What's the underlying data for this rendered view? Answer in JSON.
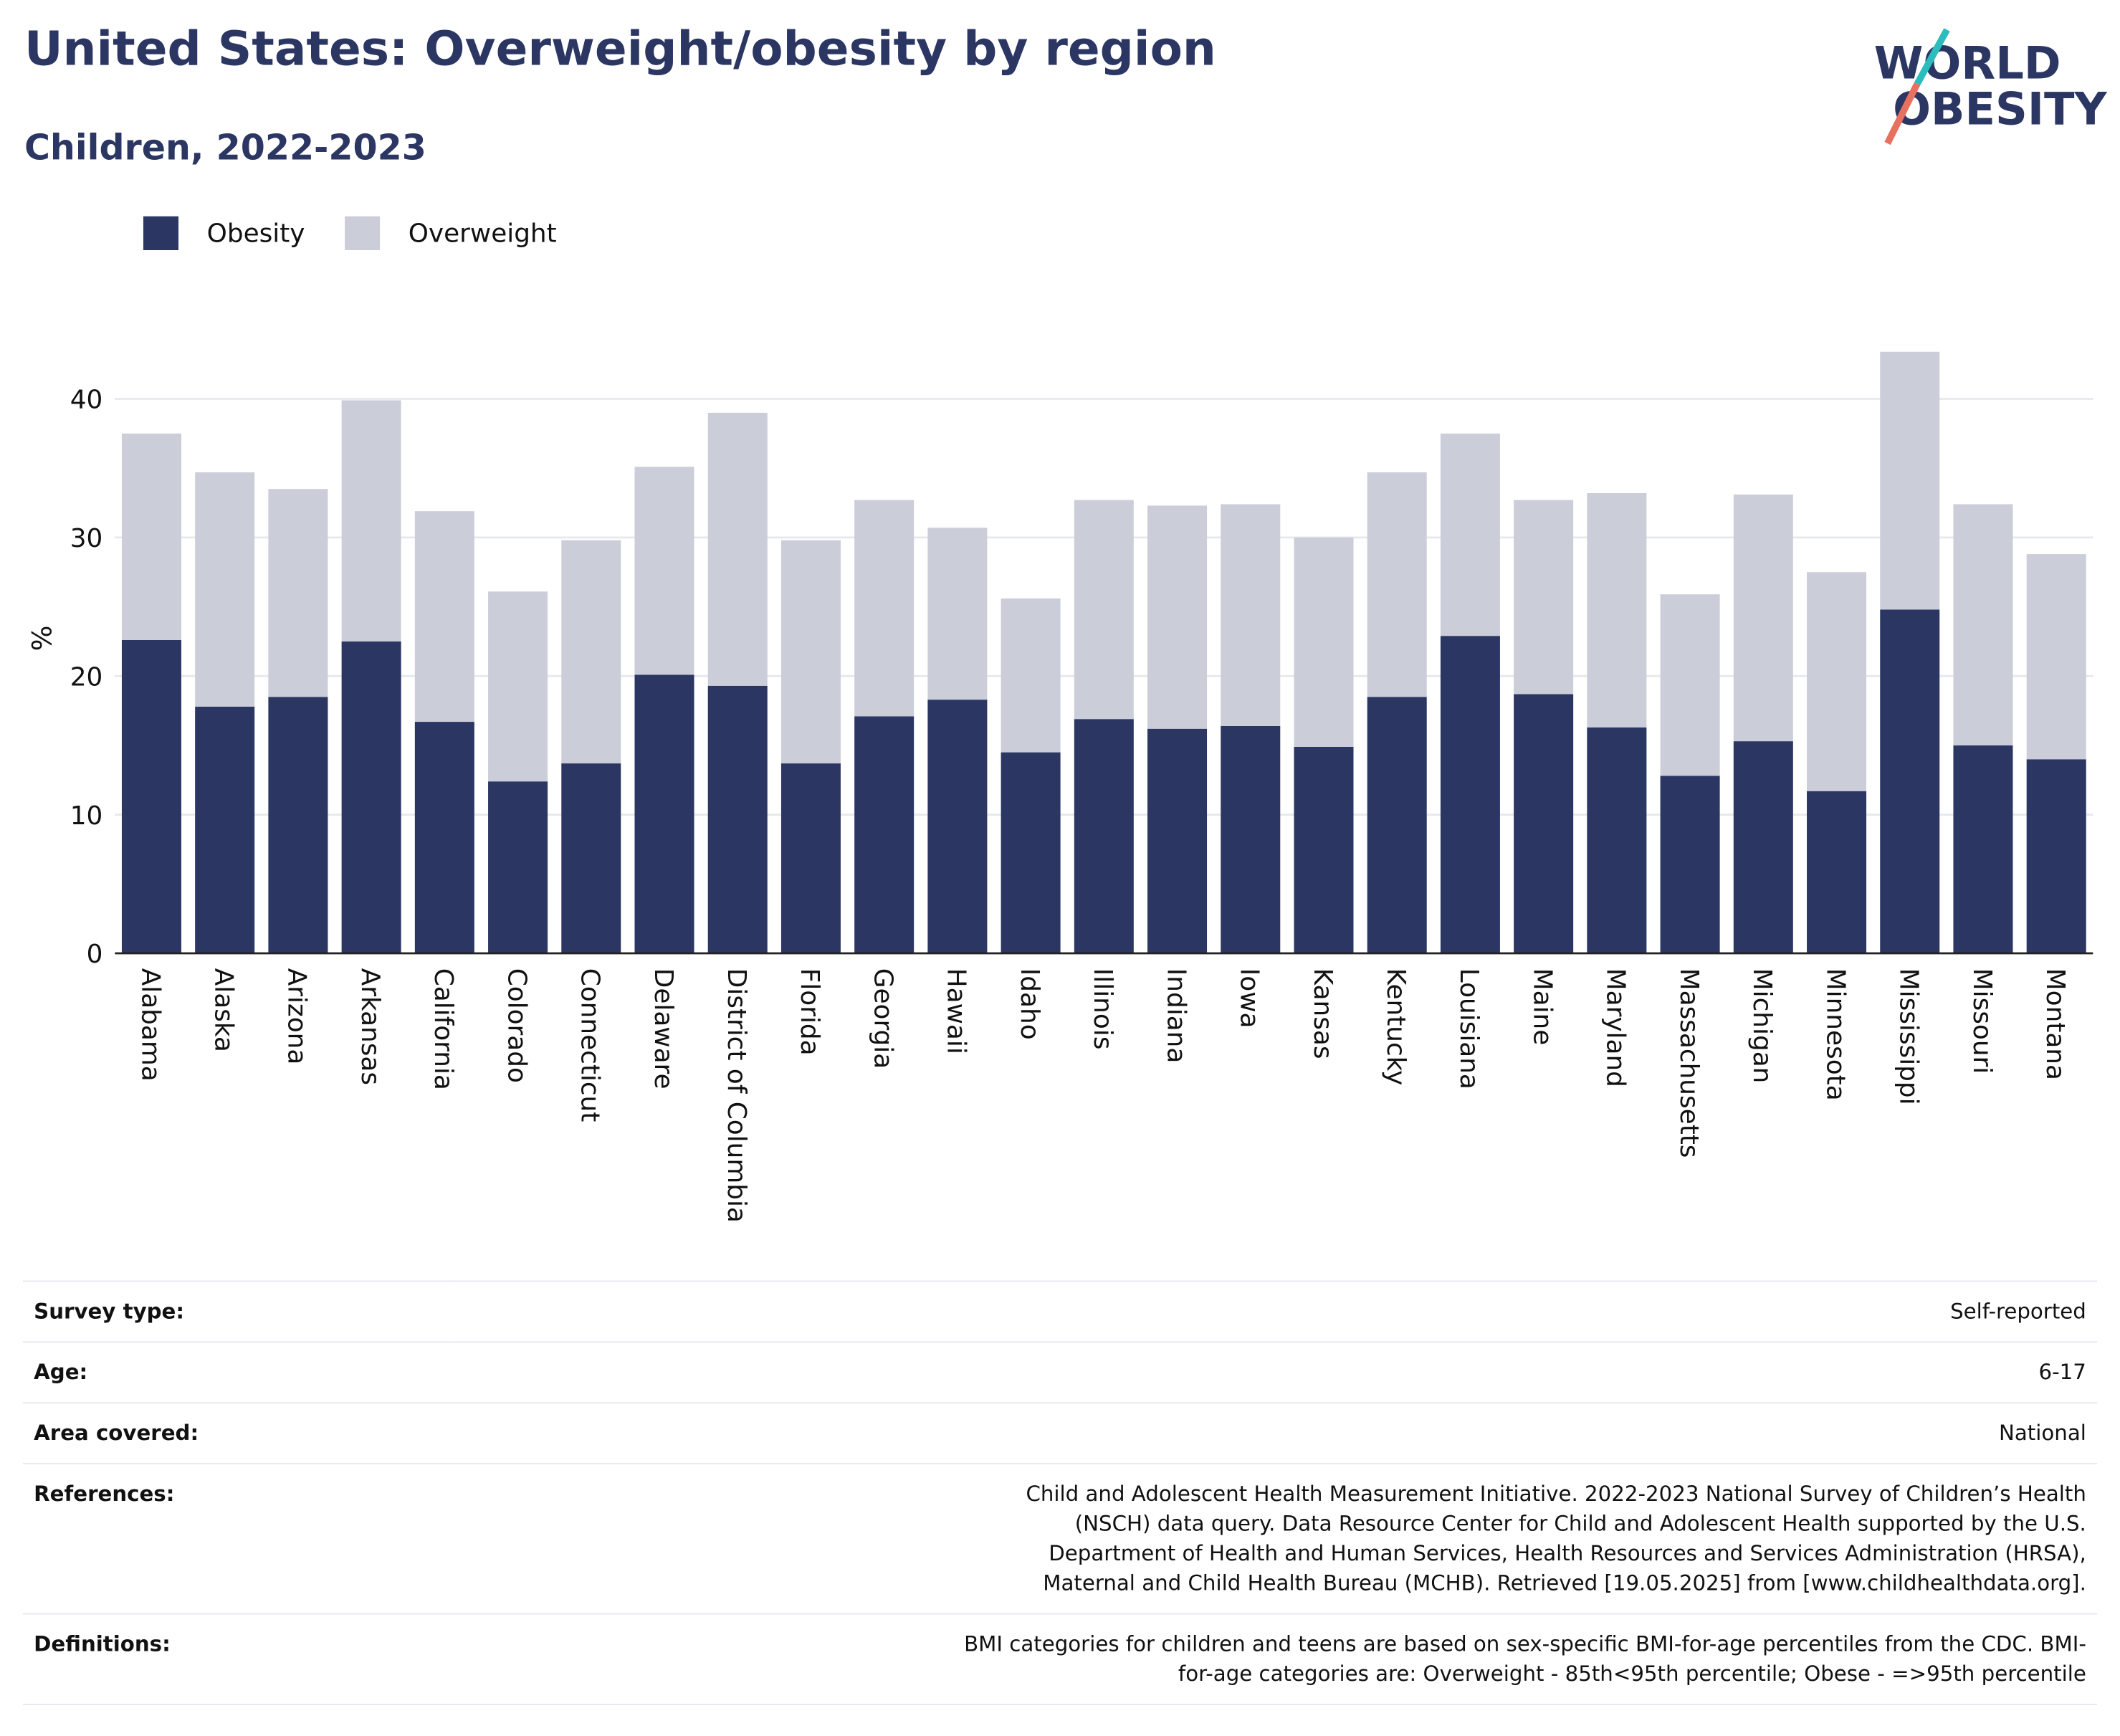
{
  "chart_data": {
    "type": "bar",
    "stacked": true,
    "title": "United States: Overweight/obesity by region",
    "subtitle": "Children, 2022-2023",
    "ylabel": "%",
    "categories": [
      "Alabama",
      "Alaska",
      "Arizona",
      "Arkansas",
      "California",
      "Colorado",
      "Connecticut",
      "Delaware",
      "District of Columbia",
      "Florida",
      "Georgia",
      "Hawaii",
      "Idaho",
      "Illinois",
      "Indiana",
      "Iowa",
      "Kansas",
      "Kentucky",
      "Louisiana",
      "Maine",
      "Maryland",
      "Massachusetts",
      "Michigan",
      "Minnesota",
      "Mississippi",
      "Missouri",
      "Montana"
    ],
    "series": [
      {
        "name": "Obesity",
        "color": "#2b3663",
        "values": [
          22.6,
          17.8,
          18.5,
          22.5,
          16.7,
          12.4,
          13.7,
          20.1,
          19.3,
          13.7,
          17.1,
          18.3,
          14.5,
          16.9,
          16.2,
          16.4,
          14.9,
          18.5,
          22.9,
          18.7,
          16.3,
          12.8,
          15.3,
          11.7,
          24.8,
          15.0,
          14.0
        ]
      },
      {
        "name": "Overweight",
        "color": "#cbcdd9",
        "values": [
          14.9,
          16.9,
          15.0,
          17.4,
          15.2,
          13.7,
          16.1,
          15.0,
          19.7,
          16.1,
          15.6,
          12.4,
          11.1,
          15.8,
          16.1,
          16.0,
          15.1,
          16.2,
          14.6,
          14.0,
          16.9,
          13.1,
          17.8,
          15.8,
          18.6,
          17.4,
          14.8
        ]
      }
    ],
    "ylim": [
      0,
      45
    ],
    "yticks": [
      0,
      10,
      20,
      30,
      40
    ],
    "grid": true,
    "legend": "top-left"
  },
  "logo": {
    "line1": "WORLD",
    "line2": "OBESITY"
  },
  "table": {
    "rows": [
      [
        "Survey type:",
        "Self-reported"
      ],
      [
        "Age:",
        "6-17"
      ],
      [
        "Area covered:",
        "National"
      ],
      [
        "References:",
        "Child and Adolescent Health Measurement Initiative. 2022-2023 National Survey of Children’s Health (NSCH) data query. Data Resource Center for Child and Adolescent Health supported by the U.S. Department of Health and Human Services, Health Resources and Services Administration (HRSA), Maternal and Child Health Bureau (MCHB). Retrieved [19.05.2025] from [www.childhealthdata.org]."
      ],
      [
        "Definitions:",
        "BMI categories for children and teens are based on sex-specific BMI-for-age percentiles from the CDC. BMI-for-age categories are: Overweight - 85th<95th percentile; Obese - =>95th percentile"
      ]
    ]
  }
}
